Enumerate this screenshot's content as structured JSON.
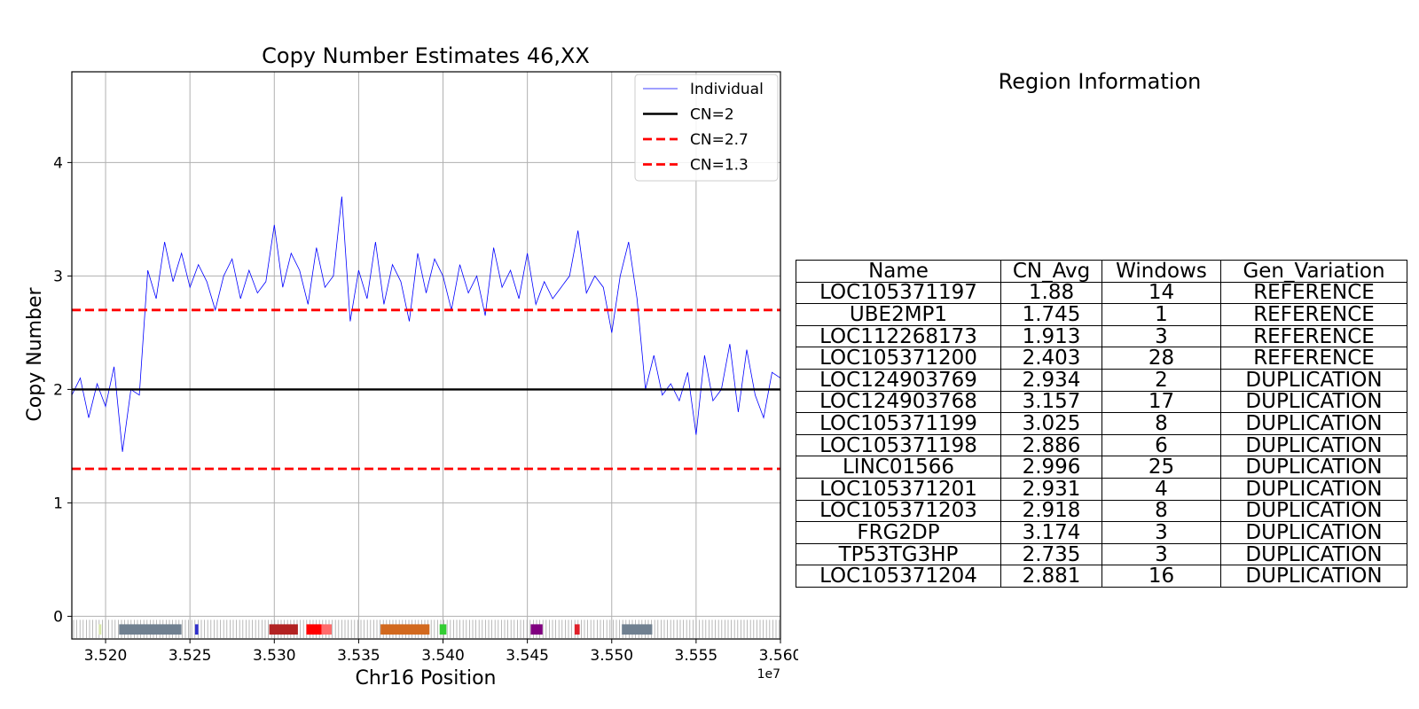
{
  "chart_data": {
    "type": "line",
    "title": "Copy Number Estimates 46,XX",
    "xlabel": "Chr16 Position",
    "ylabel": "Copy Number",
    "x_offset_label": "1e7",
    "xlim": [
      3.518,
      3.56
    ],
    "ylim": [
      -0.2,
      4.8
    ],
    "x_ticks": [
      3.52,
      3.525,
      3.53,
      3.535,
      3.54,
      3.545,
      3.55,
      3.555,
      3.56
    ],
    "x_tick_labels": [
      "3.520",
      "3.525",
      "3.530",
      "3.535",
      "3.540",
      "3.545",
      "3.550",
      "3.555",
      "3.560"
    ],
    "y_ticks": [
      0,
      1,
      2,
      3,
      4
    ],
    "y_tick_labels": [
      "0",
      "1",
      "2",
      "3",
      "4"
    ],
    "grid": true,
    "legend_position": "top-right",
    "series": [
      {
        "name": "Individual",
        "color": "#0000ff",
        "style": "line-thin",
        "x": [
          3.518,
          3.5185,
          3.519,
          3.5195,
          3.52,
          3.5205,
          3.521,
          3.5215,
          3.522,
          3.5225,
          3.523,
          3.5235,
          3.524,
          3.5245,
          3.525,
          3.5255,
          3.526,
          3.5265,
          3.527,
          3.5275,
          3.528,
          3.5285,
          3.529,
          3.5295,
          3.53,
          3.5305,
          3.531,
          3.5315,
          3.532,
          3.5325,
          3.533,
          3.5335,
          3.534,
          3.5345,
          3.535,
          3.5355,
          3.536,
          3.5365,
          3.537,
          3.5375,
          3.538,
          3.5385,
          3.539,
          3.5395,
          3.54,
          3.5405,
          3.541,
          3.5415,
          3.542,
          3.5425,
          3.543,
          3.5435,
          3.544,
          3.5445,
          3.545,
          3.5455,
          3.546,
          3.5465,
          3.547,
          3.5475,
          3.548,
          3.5485,
          3.549,
          3.5495,
          3.55,
          3.5505,
          3.551,
          3.5515,
          3.552,
          3.5525,
          3.553,
          3.5535,
          3.554,
          3.5545,
          3.555,
          3.5555,
          3.556,
          3.5565,
          3.557,
          3.5575,
          3.558,
          3.5585,
          3.559,
          3.5595,
          3.56
        ],
        "y": [
          1.95,
          2.1,
          1.75,
          2.05,
          1.85,
          2.2,
          1.45,
          2.0,
          1.95,
          3.05,
          2.8,
          3.3,
          2.95,
          3.2,
          2.9,
          3.1,
          2.95,
          2.7,
          3.0,
          3.15,
          2.8,
          3.05,
          2.85,
          2.95,
          3.45,
          2.9,
          3.2,
          3.05,
          2.75,
          3.25,
          2.9,
          3.0,
          3.7,
          2.6,
          3.05,
          2.8,
          3.3,
          2.75,
          3.1,
          2.95,
          2.6,
          3.2,
          2.85,
          3.15,
          3.0,
          2.7,
          3.1,
          2.85,
          3.0,
          2.65,
          3.25,
          2.9,
          3.05,
          2.8,
          3.2,
          2.75,
          2.95,
          2.8,
          2.9,
          3.0,
          3.4,
          2.85,
          3.0,
          2.9,
          2.5,
          3.0,
          3.3,
          2.8,
          2.0,
          2.3,
          1.95,
          2.05,
          1.9,
          2.15,
          1.6,
          2.3,
          1.9,
          2.0,
          2.4,
          1.8,
          2.35,
          1.95,
          1.75,
          2.15,
          2.1
        ]
      },
      {
        "name": "CN=2",
        "color": "#000000",
        "style": "solid",
        "constant": 2
      },
      {
        "name": "CN=2.7",
        "color": "#ff0000",
        "style": "dashed",
        "constant": 2.7
      },
      {
        "name": "CN=1.3",
        "color": "#ff0000",
        "style": "dashed",
        "constant": 1.3
      }
    ],
    "gene_track": [
      {
        "start": 3.5196,
        "end": 3.51975,
        "color": "#d9e8a8"
      },
      {
        "start": 3.5208,
        "end": 3.5245,
        "color": "#708090"
      },
      {
        "start": 3.5253,
        "end": 3.5255,
        "color": "#3030cc"
      },
      {
        "start": 3.5297,
        "end": 3.5314,
        "color": "#b22222"
      },
      {
        "start": 3.5319,
        "end": 3.5328,
        "color": "#ff0000"
      },
      {
        "start": 3.5328,
        "end": 3.5334,
        "color": "#ff6b6b"
      },
      {
        "start": 3.5363,
        "end": 3.5392,
        "color": "#d2691e"
      },
      {
        "start": 3.5398,
        "end": 3.5402,
        "color": "#32cd32"
      },
      {
        "start": 3.5452,
        "end": 3.5459,
        "color": "#800080"
      },
      {
        "start": 3.5478,
        "end": 3.5481,
        "color": "#e0202a"
      },
      {
        "start": 3.5506,
        "end": 3.5524,
        "color": "#708090"
      }
    ]
  },
  "region": {
    "title": "Region Information",
    "headers": [
      "Name",
      "CN_Avg",
      "Windows",
      "Gen_Variation"
    ],
    "rows": [
      [
        "LOC105371197",
        "1.88",
        "14",
        "REFERENCE"
      ],
      [
        "UBE2MP1",
        "1.745",
        "1",
        "REFERENCE"
      ],
      [
        "LOC112268173",
        "1.913",
        "3",
        "REFERENCE"
      ],
      [
        "LOC105371200",
        "2.403",
        "28",
        "REFERENCE"
      ],
      [
        "LOC124903769",
        "2.934",
        "2",
        "DUPLICATION"
      ],
      [
        "LOC124903768",
        "3.157",
        "17",
        "DUPLICATION"
      ],
      [
        "LOC105371199",
        "3.025",
        "8",
        "DUPLICATION"
      ],
      [
        "LOC105371198",
        "2.886",
        "6",
        "DUPLICATION"
      ],
      [
        "LINC01566",
        "2.996",
        "25",
        "DUPLICATION"
      ],
      [
        "LOC105371201",
        "2.931",
        "4",
        "DUPLICATION"
      ],
      [
        "LOC105371203",
        "2.918",
        "8",
        "DUPLICATION"
      ],
      [
        "FRG2DP",
        "3.174",
        "3",
        "DUPLICATION"
      ],
      [
        "TP53TG3HP",
        "2.735",
        "3",
        "DUPLICATION"
      ],
      [
        "LOC105371204",
        "2.881",
        "16",
        "DUPLICATION"
      ]
    ]
  }
}
